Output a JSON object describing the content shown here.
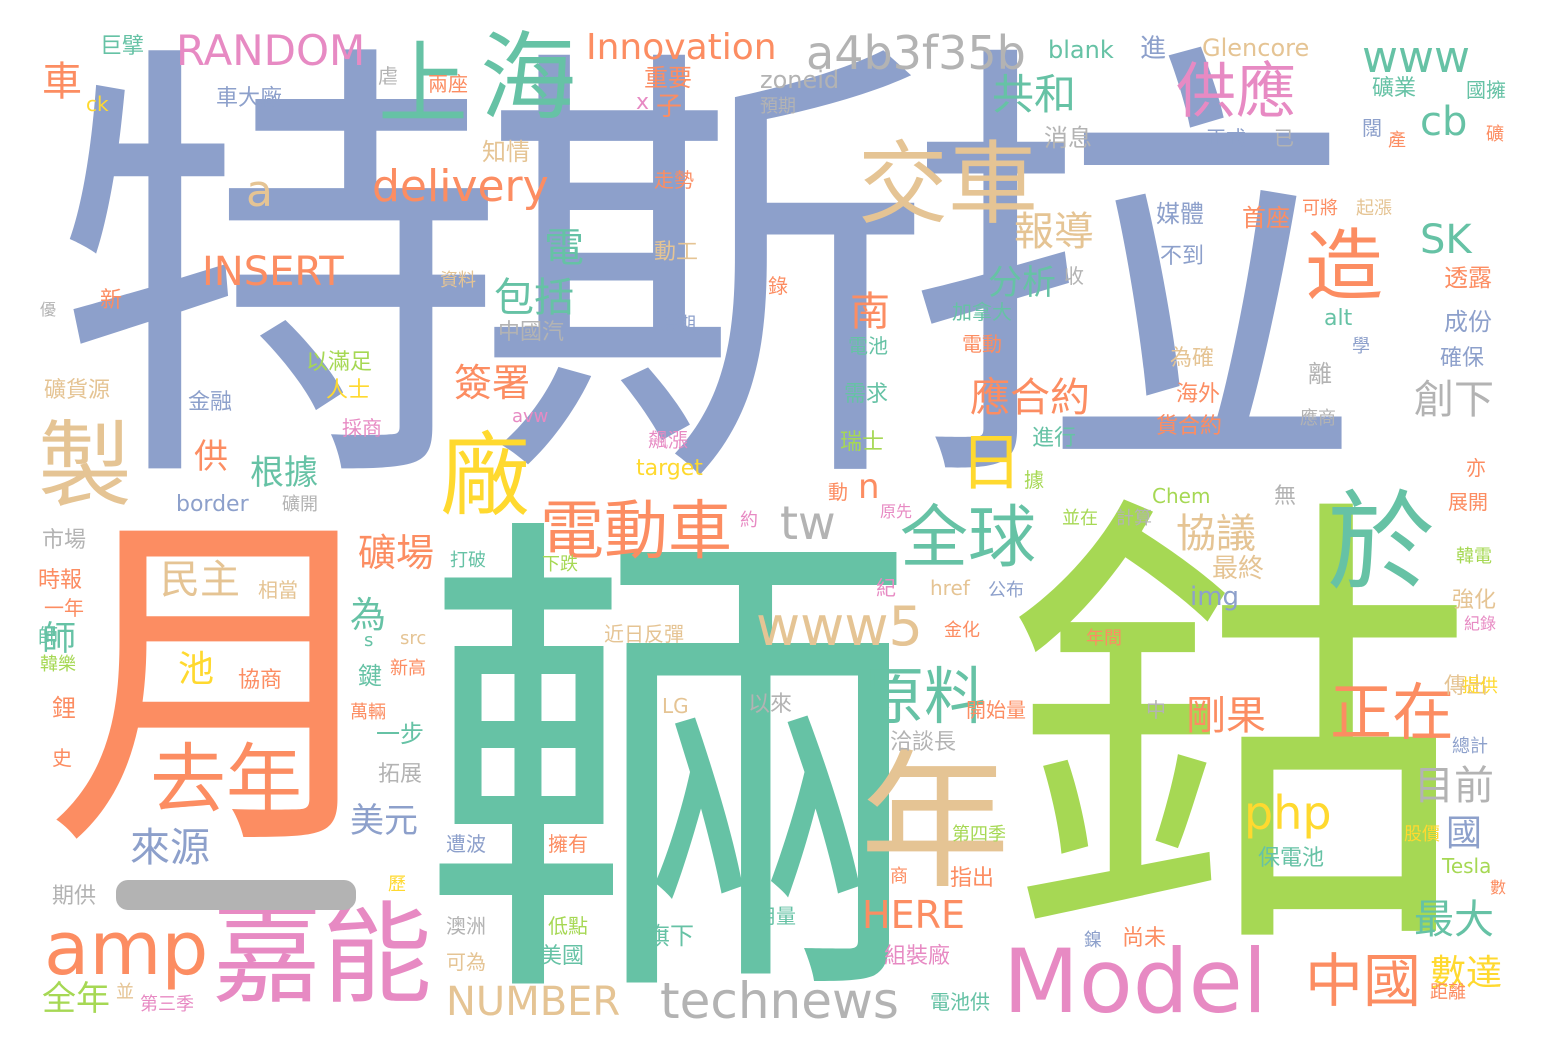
{
  "palette": {
    "blue": "#8da0cb",
    "orange": "#fc8d62",
    "green": "#66c2a5",
    "lime": "#a6d854",
    "pink": "#e78ac3",
    "yellow": "#ffd92f",
    "tan": "#e5c494",
    "gray": "#b3b3b3"
  },
  "words": [
    "特斯拉",
    "鈷",
    "輛",
    "月",
    "嘉能",
    "Model",
    "年",
    "於",
    "海",
    "上",
    "交車",
    "製",
    "廠",
    "造",
    "去年",
    "amp",
    "電動車",
    "全球",
    "technews",
    "中國",
    "www5",
    "原料",
    "正在",
    "日",
    "delivery",
    "a4b3f35b",
    "RANDOM",
    "Innovation",
    "供應",
    "www",
    "共和",
    "INSERT",
    "php",
    "NUMBER",
    "報導",
    "應合約",
    "SK",
    "cb",
    "tw",
    "a",
    "包括",
    "分析",
    "礦場",
    "簽署",
    "民主",
    "電",
    "來源",
    "協議",
    "剛果",
    "創下",
    "目前",
    "最大",
    "數達",
    "國",
    "美元",
    "HERE",
    "根據",
    "n",
    "南",
    "為",
    "車",
    "池",
    "師",
    "全年",
    "最終",
    "img",
    "進",
    "blank",
    "Glencore",
    "zoneid",
    "子",
    "x",
    "重要",
    "兩座",
    "車大廠",
    "預期",
    "知情",
    "走勢",
    "正式",
    "已",
    "礦業",
    "國擁",
    "闊",
    "產",
    "礦",
    "首座",
    "可將",
    "起漲",
    "媒體",
    "動工",
    "消息",
    "不到",
    "收",
    "錄",
    "資料",
    "加拿大",
    "透露",
    "成份",
    "alt",
    "學",
    "為期",
    "電池",
    "中國汽",
    "新",
    "ck",
    "巨擘",
    "虐",
    "優",
    "以滿足",
    "人士",
    "金融",
    "礦貨源",
    "採商",
    "需求",
    "瑞士",
    "avw",
    "電動",
    "進行",
    "海外",
    "為確",
    "離",
    "確保",
    "貨合約",
    "應商",
    "無",
    "亦",
    "展開",
    "Chem",
    "target",
    "飆漲",
    "供",
    "動",
    "據",
    "border",
    "礦開",
    "原先",
    "並在",
    "計算",
    "約",
    "市場",
    "打破",
    "下跌",
    "時報",
    "一年",
    "相當",
    "href",
    "公布",
    "紀",
    "韓電",
    "強化",
    "紀錄",
    "師",
    "韓樂",
    "協商",
    "新高",
    "src",
    "金化",
    "近日反彈",
    "年間",
    "傳出",
    "提供",
    "鋰",
    "鍵",
    "萬輛",
    "一步",
    "開始量",
    "中",
    "LG",
    "以來",
    "洽談長",
    "總計",
    "史",
    "拓展",
    "第四季",
    "遭波",
    "擁有",
    "保電池",
    "股價",
    "Tesla",
    "數",
    "期供",
    "澳洲",
    "低點",
    "指出",
    "商",
    "歷",
    "旗下",
    "用量",
    "尚未",
    "組裝廠",
    "可為",
    "美國",
    "鎳",
    "距離",
    "並",
    "第三季",
    "電池供",
    "s"
  ]
}
